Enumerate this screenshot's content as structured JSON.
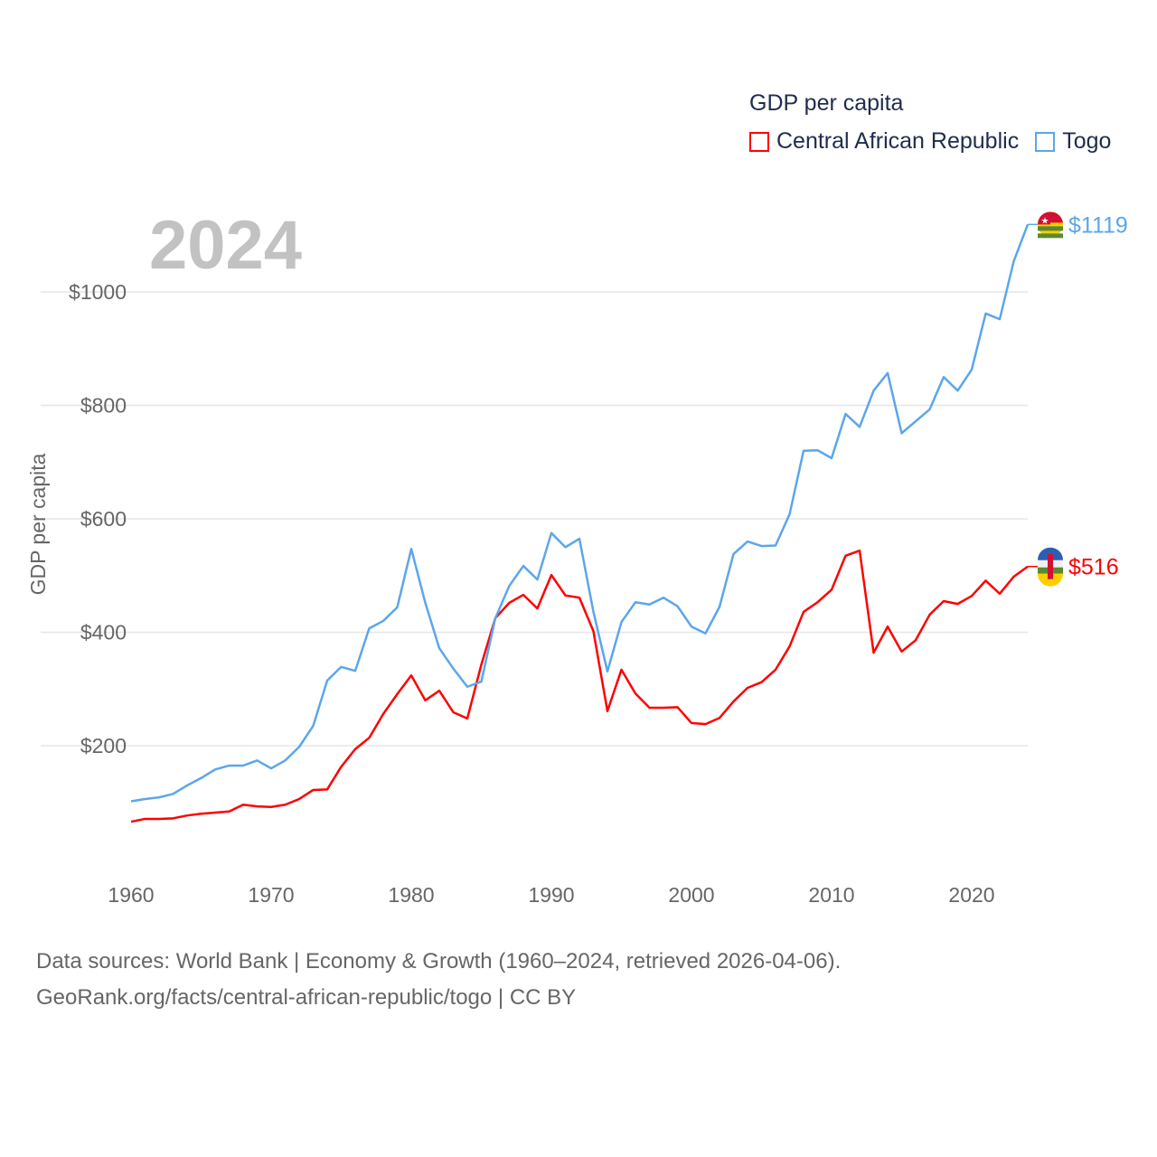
{
  "legend": {
    "title": "GDP per capita",
    "items": [
      {
        "name": "Central African Republic",
        "color": "#ff0000"
      },
      {
        "name": "Togo",
        "color": "#5ba6ec"
      }
    ]
  },
  "year_label": "2024",
  "end_labels": {
    "togo": "$1119",
    "car": "$516"
  },
  "source": {
    "line1": "Data sources: World Bank | Economy & Growth (1960–2024, retrieved 2026-04-06).",
    "line2": "GeoRank.org/facts/central-african-republic/togo | CC BY"
  },
  "chart_data": {
    "type": "line",
    "title": "GDP per capita",
    "xlabel": "",
    "ylabel": "GDP per capita",
    "xlim": [
      1960,
      2024
    ],
    "ylim": [
      0,
      1150
    ],
    "xticks": [
      1960,
      1970,
      1980,
      1990,
      2000,
      2010,
      2020
    ],
    "yticks": [
      200,
      400,
      600,
      800,
      1000
    ],
    "ytick_labels": [
      "$200",
      "$400",
      "$600",
      "$800",
      "$1000"
    ],
    "grid": true,
    "legend_position": "top-right",
    "x_start": 1960,
    "series": [
      {
        "name": "Central African Republic",
        "color": "#ff0000",
        "values": [
          66,
          71,
          71,
          72,
          77,
          80,
          82,
          84,
          96,
          93,
          92,
          96,
          106,
          122,
          123,
          163,
          194,
          214,
          256,
          291,
          324,
          280,
          297,
          259,
          248,
          343,
          425,
          452,
          466,
          442,
          501,
          465,
          461,
          402,
          261,
          334,
          292,
          267,
          267,
          268,
          240,
          238,
          249,
          278,
          302,
          312,
          334,
          375,
          436,
          453,
          475,
          535,
          544,
          364,
          410,
          366,
          386,
          431,
          455,
          450,
          464,
          491,
          468,
          498,
          516
        ]
      },
      {
        "name": "Togo",
        "color": "#5ba6ec",
        "values": [
          102,
          106,
          109,
          115,
          130,
          143,
          158,
          165,
          165,
          174,
          160,
          174,
          198,
          235,
          315,
          339,
          332,
          407,
          420,
          444,
          547,
          452,
          372,
          336,
          304,
          313,
          425,
          482,
          517,
          493,
          575,
          550,
          565,
          436,
          331,
          418,
          453,
          449,
          461,
          446,
          410,
          398,
          445,
          538,
          560,
          552,
          553,
          608,
          720,
          721,
          707,
          785,
          762,
          826,
          857,
          751,
          772,
          793,
          850,
          826,
          863,
          962,
          952,
          1054,
          1119
        ]
      }
    ]
  }
}
